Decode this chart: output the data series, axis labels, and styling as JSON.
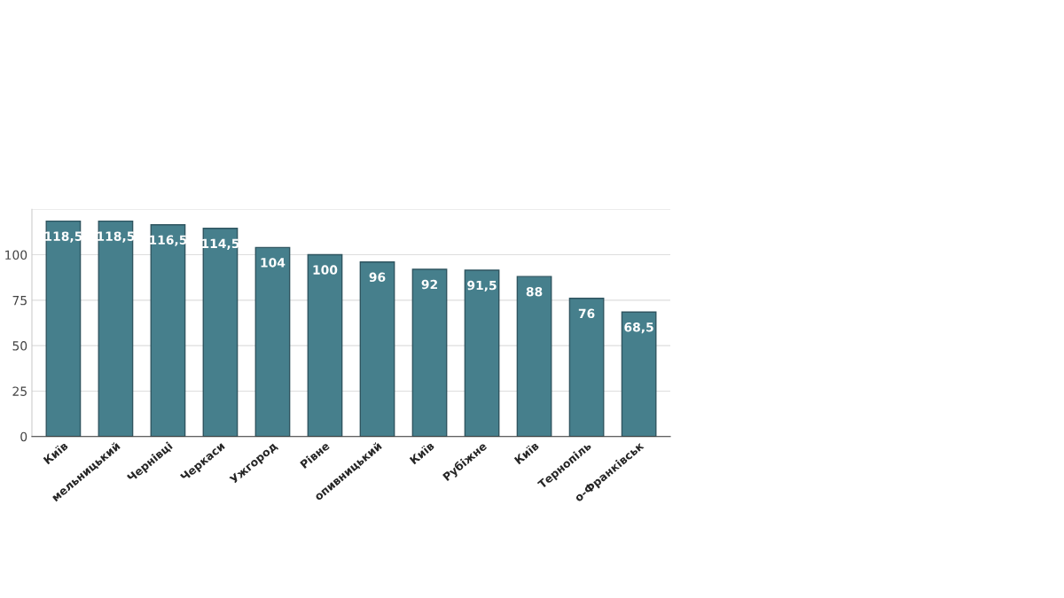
{
  "chart_data": {
    "type": "bar",
    "categories": [
      "Київ",
      "мельницький",
      "Чернівці",
      "Черкаси",
      "Ужгород",
      "Рівне",
      "опивницький",
      "Київ",
      "Рубіжне",
      "Київ",
      "Тернопіль",
      "о-Франківськ"
    ],
    "values": [
      118.5,
      118.5,
      116.5,
      114.5,
      104,
      100,
      96,
      92,
      91.5,
      88,
      76,
      68.5
    ],
    "value_labels": [
      "118,5",
      "118,5",
      "116,5",
      "114,5",
      "104",
      "100",
      "96",
      "92",
      "91,5",
      "88",
      "76",
      "68,5"
    ],
    "color": "#467f8c",
    "ylim": [
      0,
      125
    ],
    "yticks": [
      0,
      25,
      50,
      75,
      100,
      {
        "value": 125,
        "label": null
      }
    ],
    "grid": "y"
  }
}
